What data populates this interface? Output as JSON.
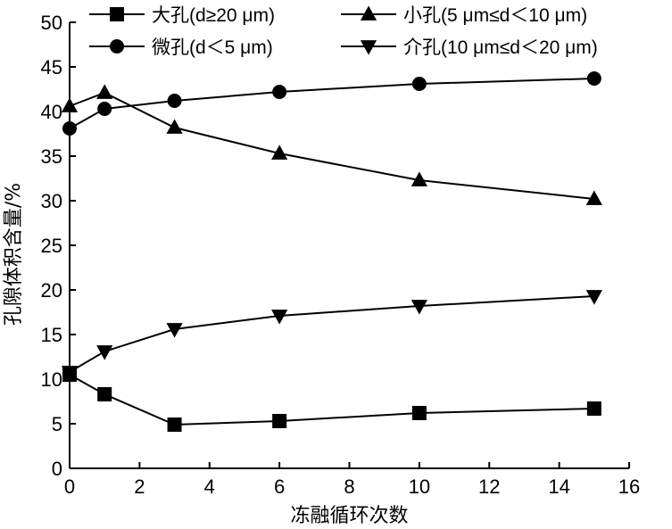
{
  "chart_data": {
    "type": "line",
    "xlabel": "冻融循环次数",
    "ylabel": "孔隙体积含量/%",
    "xlim": [
      0,
      16
    ],
    "ylim": [
      0,
      50
    ],
    "xticks": [
      0,
      2,
      4,
      6,
      8,
      10,
      12,
      14,
      16
    ],
    "yticks": [
      0,
      5,
      10,
      15,
      20,
      25,
      30,
      35,
      40,
      45,
      50
    ],
    "grid": false,
    "legend_position": "top",
    "x": [
      0,
      1,
      3,
      6,
      10,
      15
    ],
    "series": [
      {
        "name": "大孔(d≥20 μm)",
        "marker": "square",
        "color": "#000000",
        "values": [
          10.5,
          8.3,
          4.9,
          5.3,
          6.2,
          6.7
        ]
      },
      {
        "name": "小孔(5 μm≤d＜10 μm)",
        "marker": "triangle-up",
        "color": "#000000",
        "values": [
          40.6,
          42.1,
          38.2,
          35.3,
          32.3,
          30.2
        ]
      },
      {
        "name": "微孔(d＜5 μm)",
        "marker": "circle",
        "color": "#000000",
        "values": [
          38.1,
          40.3,
          41.2,
          42.2,
          43.1,
          43.7
        ]
      },
      {
        "name": "介孔(10 μm≤d＜20 μm)",
        "marker": "triangle-down",
        "color": "#000000",
        "values": [
          10.8,
          13.1,
          15.6,
          17.1,
          18.2,
          19.3
        ]
      }
    ]
  }
}
